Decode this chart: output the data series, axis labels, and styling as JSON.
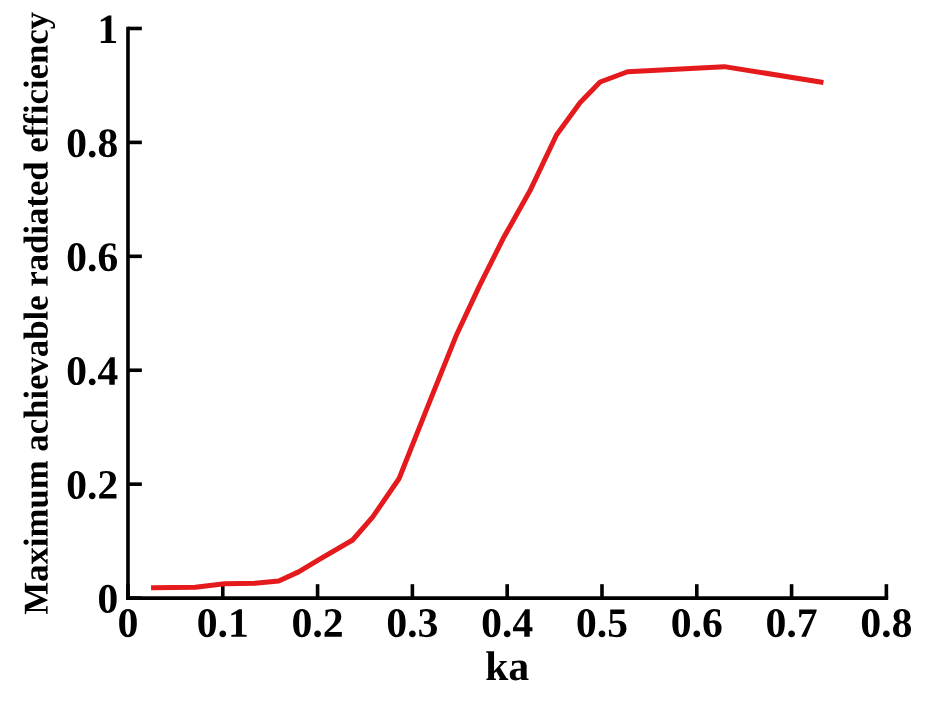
{
  "chart_data": {
    "type": "line",
    "xlabel": "ka",
    "ylabel": "Maximum achievable radiated efficiency",
    "x": [
      0.027,
      0.071,
      0.102,
      0.134,
      0.159,
      0.18,
      0.201,
      0.237,
      0.258,
      0.286,
      0.318,
      0.346,
      0.371,
      0.396,
      0.424,
      0.452,
      0.477,
      0.498,
      0.527,
      0.629,
      0.731
    ],
    "series": [
      {
        "color": "#e41a1c",
        "values": [
          0.018,
          0.019,
          0.025,
          0.026,
          0.03,
          0.046,
          0.067,
          0.102,
          0.142,
          0.21,
          0.344,
          0.46,
          0.549,
          0.632,
          0.715,
          0.813,
          0.87,
          0.906,
          0.924,
          0.933,
          0.906
        ]
      }
    ],
    "xlim": [
      0,
      0.8
    ],
    "ylim": [
      0,
      1
    ],
    "xticks": [
      0,
      0.1,
      0.2,
      0.3,
      0.4,
      0.5,
      0.6,
      0.7,
      0.8
    ],
    "yticks": [
      0,
      0.2,
      0.4,
      0.6,
      0.8,
      1
    ],
    "grid": false,
    "marker": "none",
    "line_style": "solid"
  }
}
